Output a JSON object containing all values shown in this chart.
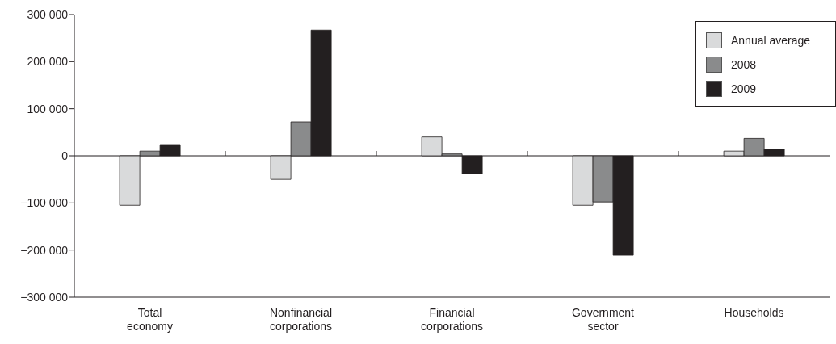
{
  "chart_data": {
    "type": "bar",
    "categories": [
      "Total\neconomy",
      "Nonfinancial\ncorporations",
      "Financial\ncorporations",
      "Government\nsector",
      "Households"
    ],
    "series": [
      {
        "name": "Annual average",
        "color": "#d9dadb",
        "values": [
          -105000,
          -50000,
          40000,
          -105000,
          10000
        ]
      },
      {
        "name": "2008",
        "color": "#8a8b8c",
        "values": [
          10000,
          72000,
          4000,
          -98000,
          37000
        ]
      },
      {
        "name": "2009",
        "color": "#231f20",
        "values": [
          24000,
          267000,
          -38000,
          -211000,
          14000
        ]
      }
    ],
    "ylim": [
      -300000,
      300000
    ],
    "yticks": [
      {
        "value": -300000,
        "label": "−300 000"
      },
      {
        "value": -200000,
        "label": "−200 000"
      },
      {
        "value": -100000,
        "label": "−100 000"
      },
      0,
      {
        "value": 100000,
        "label": "100 000"
      },
      {
        "value": 200000,
        "label": "200 000"
      },
      {
        "value": 300000,
        "label": "300 000"
      }
    ],
    "ref_lines": [
      {
        "axis": "y",
        "value": 0
      }
    ],
    "grid": false,
    "legend": "top right"
  }
}
